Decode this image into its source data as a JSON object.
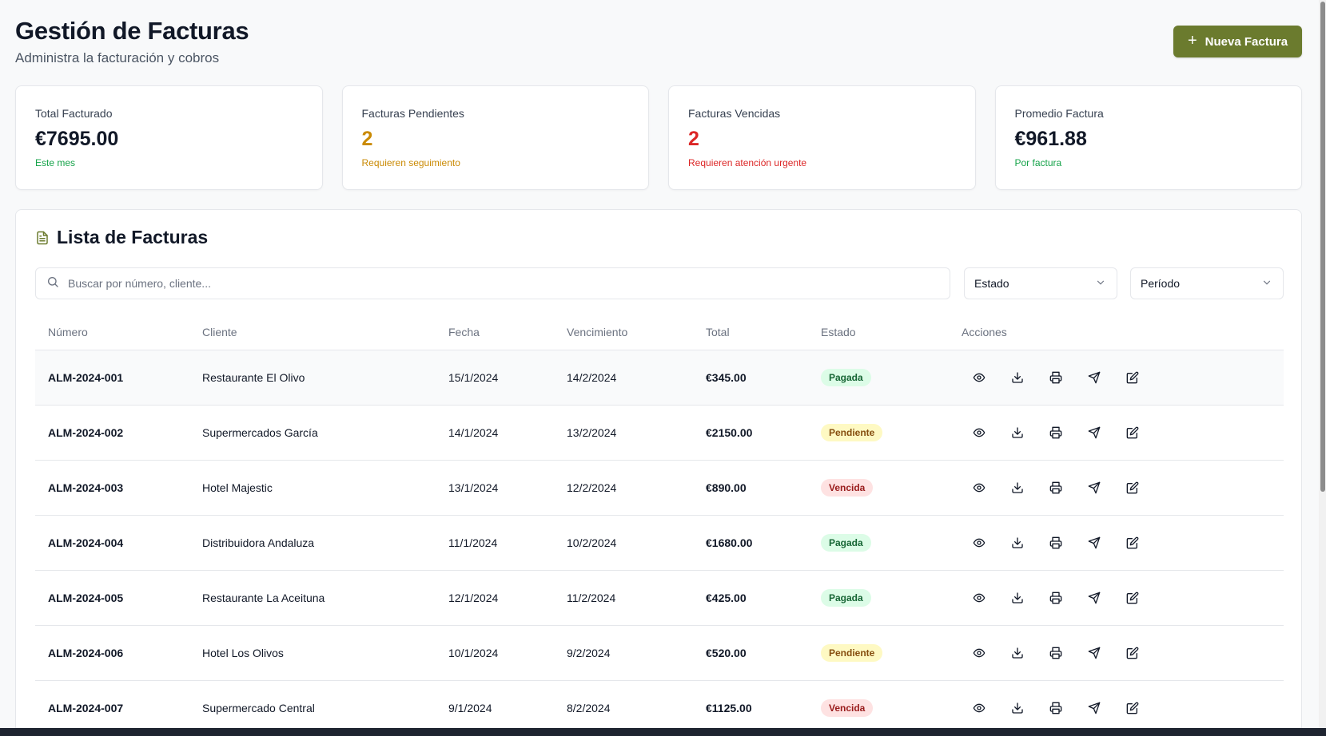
{
  "header": {
    "title": "Gestión de Facturas",
    "subtitle": "Administra la facturación y cobros",
    "new_button_label": "Nueva Factura"
  },
  "stats": [
    {
      "label": "Total Facturado",
      "value": "€7695.00",
      "note": "Este mes",
      "value_color": "#111827",
      "note_color": "#16a34a"
    },
    {
      "label": "Facturas Pendientes",
      "value": "2",
      "note": "Requieren seguimiento",
      "value_color": "#ca8a04",
      "note_color": "#ca8a04"
    },
    {
      "label": "Facturas Vencidas",
      "value": "2",
      "note": "Requieren atención urgente",
      "value_color": "#dc2626",
      "note_color": "#dc2626"
    },
    {
      "label": "Promedio Factura",
      "value": "€961.88",
      "note": "Por factura",
      "value_color": "#111827",
      "note_color": "#16a34a"
    }
  ],
  "list": {
    "title": "Lista de Facturas",
    "search_placeholder": "Buscar por número, cliente...",
    "estado_select": "Estado",
    "periodo_select": "Período",
    "columns": [
      "Número",
      "Cliente",
      "Fecha",
      "Vencimiento",
      "Total",
      "Estado",
      "Acciones"
    ],
    "rows": [
      {
        "numero": "ALM-2024-001",
        "cliente": "Restaurante El Olivo",
        "fecha": "15/1/2024",
        "vencimiento": "14/2/2024",
        "total": "€345.00",
        "estado": "Pagada"
      },
      {
        "numero": "ALM-2024-002",
        "cliente": "Supermercados García",
        "fecha": "14/1/2024",
        "vencimiento": "13/2/2024",
        "total": "€2150.00",
        "estado": "Pendiente"
      },
      {
        "numero": "ALM-2024-003",
        "cliente": "Hotel Majestic",
        "fecha": "13/1/2024",
        "vencimiento": "12/2/2024",
        "total": "€890.00",
        "estado": "Vencida"
      },
      {
        "numero": "ALM-2024-004",
        "cliente": "Distribuidora Andaluza",
        "fecha": "11/1/2024",
        "vencimiento": "10/2/2024",
        "total": "€1680.00",
        "estado": "Pagada"
      },
      {
        "numero": "ALM-2024-005",
        "cliente": "Restaurante La Aceituna",
        "fecha": "12/1/2024",
        "vencimiento": "11/2/2024",
        "total": "€425.00",
        "estado": "Pagada"
      },
      {
        "numero": "ALM-2024-006",
        "cliente": "Hotel Los Olivos",
        "fecha": "10/1/2024",
        "vencimiento": "9/2/2024",
        "total": "€520.00",
        "estado": "Pendiente"
      },
      {
        "numero": "ALM-2024-007",
        "cliente": "Supermercado Central",
        "fecha": "9/1/2024",
        "vencimiento": "8/2/2024",
        "total": "€1125.00",
        "estado": "Vencida"
      }
    ],
    "actions": [
      "eye-icon",
      "download-icon",
      "printer-icon",
      "send-icon",
      "edit-icon"
    ]
  },
  "colors": {
    "accent": "#6b7b2e",
    "pagada_bg": "#dcfce7",
    "pendiente_bg": "#fef9c3",
    "vencida_bg": "#fee2e2"
  }
}
